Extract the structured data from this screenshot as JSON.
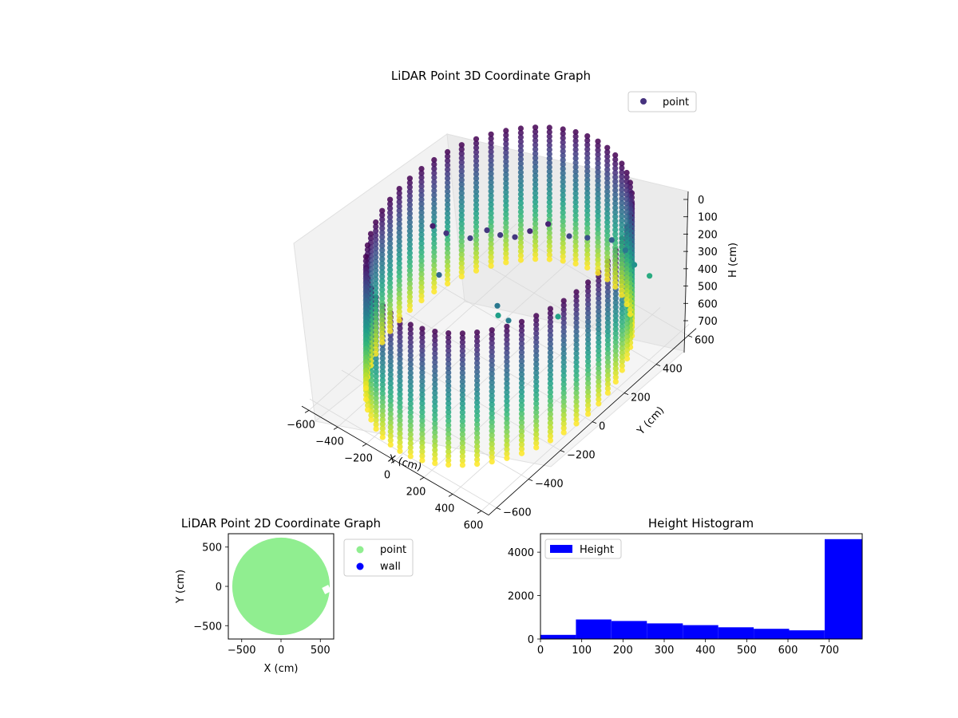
{
  "chart_data": [
    {
      "type": "scatter",
      "title": "LiDAR Point 3D Coordinate Graph",
      "xlabel": "X (cm)",
      "ylabel": "Y (cm)",
      "zlabel": "H (cm)",
      "x_ticks": [
        "−600",
        "−400",
        "−200",
        "0",
        "200",
        "400",
        "600"
      ],
      "y_ticks": [
        "−600",
        "−400",
        "−200",
        "0",
        "200",
        "400",
        "600"
      ],
      "z_ticks": [
        "0",
        "100",
        "200",
        "300",
        "400",
        "500",
        "600",
        "700"
      ],
      "xlim": [
        -650,
        650
      ],
      "ylim": [
        -650,
        650
      ],
      "zlim": [
        780,
        0
      ],
      "z_inverted": true,
      "legend": {
        "label": "point",
        "placement": "top-right",
        "color": "#46327e"
      },
      "colormap": "viridis",
      "grid": true,
      "cylinder": {
        "radius": 620,
        "height_min": 0,
        "height_max": 750
      }
    },
    {
      "type": "scatter",
      "title": "LiDAR Point 2D Coordinate Graph",
      "xlabel": "X (cm)",
      "ylabel": "Y (cm)",
      "x_ticks": [
        "−500",
        "0",
        "500"
      ],
      "y_ticks": [
        "500",
        "0",
        "−500"
      ],
      "xlim": [
        -670,
        670
      ],
      "ylim": [
        -670,
        670
      ],
      "legend": {
        "placement": "outside-right"
      },
      "series": [
        {
          "name": "point",
          "color": "#90ee90",
          "radius": 620
        },
        {
          "name": "wall",
          "color": "#0000ff"
        }
      ]
    },
    {
      "type": "bar",
      "title": "Height Histogram",
      "x_ticks": [
        "0",
        "100",
        "200",
        "300",
        "400",
        "500",
        "600",
        "700"
      ],
      "y_ticks": [
        "0",
        "2000",
        "4000"
      ],
      "xlim": [
        0,
        780
      ],
      "ylim": [
        0,
        4850
      ],
      "legend": {
        "label": "Height",
        "placement": "top-left"
      },
      "color": "#0000ff",
      "bins": [
        {
          "start": 0,
          "end": 86,
          "count": 190
        },
        {
          "start": 86,
          "end": 172,
          "count": 900
        },
        {
          "start": 172,
          "end": 258,
          "count": 830
        },
        {
          "start": 258,
          "end": 345,
          "count": 720
        },
        {
          "start": 345,
          "end": 431,
          "count": 640
        },
        {
          "start": 431,
          "end": 517,
          "count": 540
        },
        {
          "start": 517,
          "end": 603,
          "count": 470
        },
        {
          "start": 603,
          "end": 689,
          "count": 400
        },
        {
          "start": 689,
          "end": 780,
          "count": 4600
        }
      ]
    }
  ]
}
